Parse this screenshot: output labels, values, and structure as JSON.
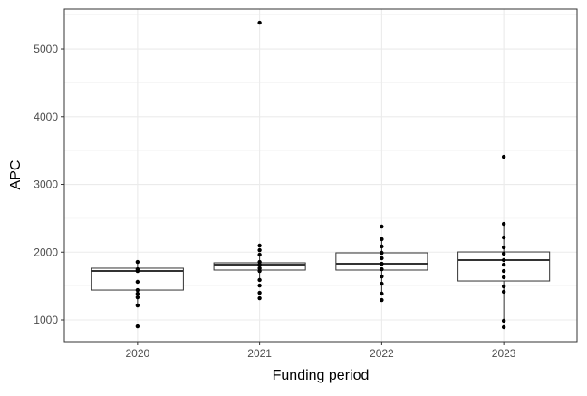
{
  "chart_data": {
    "type": "boxplot",
    "x_label": "Funding period",
    "y_label": "APC",
    "categories": [
      "2020",
      "2021",
      "2022",
      "2023"
    ],
    "boxes": [
      {
        "min": 1214,
        "q1": 1441,
        "median": 1722,
        "q3": 1763,
        "max": 1856,
        "points": [
          1856,
          1749,
          1722,
          1562,
          1441,
          1388,
          1334,
          1214,
          906
        ]
      },
      {
        "min": 1589,
        "q1": 1736,
        "median": 1816,
        "q3": 1843,
        "max": 1963,
        "points": [
          5388,
          2097,
          2030,
          1963,
          1856,
          1816,
          1763,
          1722,
          1589,
          1508,
          1401,
          1321
        ]
      },
      {
        "min": 1388,
        "q1": 1736,
        "median": 1829,
        "q3": 1990,
        "max": 2191,
        "points": [
          2378,
          2191,
          2084,
          1990,
          1910,
          1829,
          1749,
          1642,
          1535,
          1388,
          1294
        ]
      },
      {
        "min": 987,
        "q1": 1575,
        "median": 1883,
        "q3": 2003,
        "max": 2418,
        "points": [
          3408,
          2418,
          2217,
          2070,
          1977,
          1883,
          1816,
          1722,
          1629,
          1495,
          1415,
          987,
          893
        ]
      }
    ],
    "ylim": [
      679,
      5589
    ],
    "yticks": [
      1000,
      2000,
      3000,
      4000,
      5000
    ],
    "yminorticks": [
      1500,
      2500,
      3500,
      4500,
      5500
    ],
    "grid": true,
    "box_color": "#333333",
    "point_color": "#000000"
  }
}
